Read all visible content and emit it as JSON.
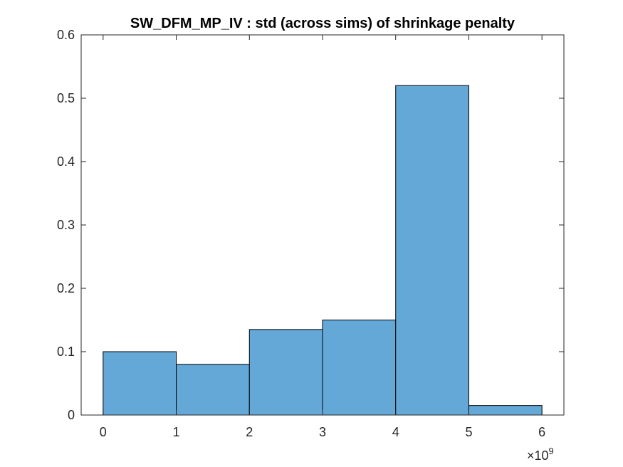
{
  "chart_data": {
    "type": "bar",
    "title": "SW_DFM_MP_IV : std (across sims) of shrinkage penalty",
    "xlabel": "",
    "ylabel": "",
    "x_exponent_label": "×10",
    "x_exponent_power": "9",
    "bin_edges": [
      0,
      1,
      2,
      3,
      4,
      5,
      6
    ],
    "values": [
      0.1,
      0.08,
      0.135,
      0.15,
      0.52,
      0.015
    ],
    "xlim": [
      -0.3,
      6.3
    ],
    "ylim": [
      0,
      0.6
    ],
    "xticks": [
      0,
      1,
      2,
      3,
      4,
      5,
      6
    ],
    "xtick_labels": [
      "0",
      "1",
      "2",
      "3",
      "4",
      "5",
      "6"
    ],
    "yticks": [
      0,
      0.1,
      0.2,
      0.3,
      0.4,
      0.5,
      0.6
    ],
    "ytick_labels": [
      "0",
      "0.1",
      "0.2",
      "0.3",
      "0.4",
      "0.5",
      "0.6"
    ],
    "bar_color": "#64a8d8",
    "edge_color": "#000000",
    "grid": false,
    "box": true
  }
}
